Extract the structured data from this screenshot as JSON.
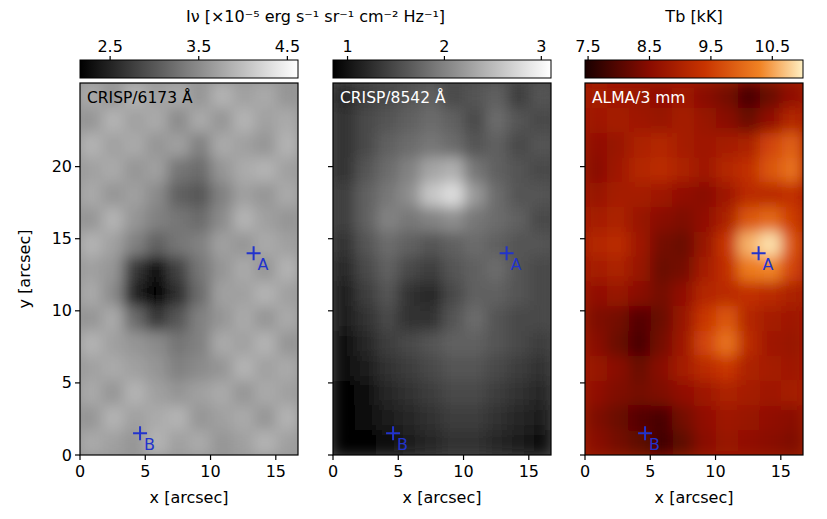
{
  "chart_data": [
    {
      "type": "heatmap",
      "title": "CRISP/6173 Å",
      "xlabel": "x [arcsec]",
      "ylabel": "y [arcsec]",
      "xlim": [
        0,
        16.7
      ],
      "ylim": [
        0,
        25.8
      ],
      "xticks": [
        0,
        5,
        10,
        15
      ],
      "yticks": [
        0,
        5,
        10,
        15,
        20
      ],
      "color": "gray",
      "colorbar": {
        "label": "Iν [×10⁻⁵ erg s⁻¹ sr⁻¹ cm⁻² Hz⁻¹]",
        "range": [
          2.16,
          4.62
        ],
        "ticks": [
          2.5,
          3.5,
          4.5
        ]
      },
      "cells": [
        [
          3.8,
          3.6,
          3.9,
          3.7,
          3.8,
          3.6,
          3.9,
          3.7,
          3.8,
          3.6
        ],
        [
          3.6,
          3.9,
          3.7,
          3.8,
          3.5,
          3.8,
          3.6,
          3.9,
          3.7,
          3.8
        ],
        [
          3.9,
          3.7,
          3.8,
          3.6,
          3.7,
          3.4,
          3.8,
          3.7,
          3.6,
          3.9
        ],
        [
          3.7,
          3.8,
          3.6,
          3.7,
          3.3,
          3.2,
          3.6,
          3.8,
          3.9,
          3.7
        ],
        [
          3.8,
          3.6,
          3.7,
          3.5,
          3.1,
          3.0,
          3.4,
          3.7,
          3.6,
          3.8
        ],
        [
          3.6,
          3.9,
          3.6,
          3.4,
          3.3,
          3.2,
          3.5,
          3.9,
          3.7,
          3.6
        ],
        [
          3.9,
          3.7,
          3.4,
          3.1,
          3.3,
          3.4,
          3.7,
          3.6,
          3.8,
          3.7
        ],
        [
          3.7,
          3.6,
          2.7,
          2.3,
          2.8,
          3.3,
          3.6,
          3.8,
          3.6,
          3.9
        ],
        [
          3.8,
          3.5,
          2.5,
          2.2,
          2.6,
          3.2,
          3.7,
          3.7,
          3.9,
          3.7
        ],
        [
          3.6,
          3.8,
          3.2,
          2.7,
          3.0,
          3.4,
          3.6,
          3.8,
          3.6,
          3.8
        ],
        [
          3.9,
          3.7,
          3.6,
          3.5,
          3.3,
          3.4,
          3.8,
          3.7,
          3.9,
          3.6
        ],
        [
          3.7,
          3.8,
          3.7,
          3.6,
          3.4,
          3.5,
          3.6,
          3.9,
          3.7,
          3.8
        ],
        [
          3.8,
          3.6,
          3.9,
          3.7,
          3.6,
          3.7,
          3.8,
          3.6,
          3.8,
          3.7
        ],
        [
          3.6,
          3.9,
          3.7,
          3.8,
          3.9,
          3.6,
          3.7,
          3.8,
          3.6,
          3.9
        ],
        [
          3.8,
          3.7,
          3.6,
          3.9,
          3.7,
          3.8,
          3.6,
          3.7,
          3.9,
          3.7
        ]
      ],
      "points": [
        {
          "label": "A",
          "x": 13.3,
          "y": 14.0
        },
        {
          "label": "B",
          "x": 4.6,
          "y": 1.5
        }
      ]
    },
    {
      "type": "heatmap",
      "title": "CRISP/8542 Å",
      "xlabel": "x [arcsec]",
      "xlim": [
        0,
        16.7
      ],
      "ylim": [
        0,
        25.8
      ],
      "xticks": [
        0,
        5,
        10,
        15
      ],
      "yticks": [
        0,
        5,
        10,
        15,
        20
      ],
      "tick_labels": "x",
      "color": "gray",
      "colorbar": {
        "range": [
          0.85,
          3.1
        ],
        "ticks": [
          1,
          2,
          3
        ]
      },
      "cells": [
        [
          1.2,
          1.4,
          1.5,
          1.6,
          1.7,
          1.5,
          1.6,
          1.7,
          1.4,
          1.6
        ],
        [
          1.3,
          1.5,
          1.6,
          1.7,
          1.8,
          1.7,
          1.5,
          1.8,
          1.6,
          1.5
        ],
        [
          1.3,
          1.5,
          1.7,
          1.8,
          1.9,
          1.8,
          1.6,
          1.7,
          1.5,
          1.6
        ],
        [
          1.3,
          1.6,
          1.8,
          2.0,
          2.3,
          2.4,
          1.9,
          1.7,
          1.6,
          1.5
        ],
        [
          1.4,
          1.7,
          1.9,
          2.1,
          2.6,
          2.8,
          2.2,
          1.8,
          1.6,
          1.6
        ],
        [
          1.4,
          1.7,
          2.0,
          1.9,
          2.0,
          2.1,
          1.9,
          1.8,
          1.7,
          1.5
        ],
        [
          1.3,
          1.6,
          1.8,
          1.7,
          1.6,
          1.7,
          1.8,
          1.7,
          1.6,
          1.6
        ],
        [
          1.2,
          1.5,
          1.7,
          1.5,
          1.4,
          1.6,
          1.7,
          1.8,
          1.6,
          1.5
        ],
        [
          1.1,
          1.4,
          1.6,
          1.3,
          1.2,
          1.5,
          1.7,
          1.7,
          1.6,
          1.5
        ],
        [
          1.1,
          1.3,
          1.5,
          1.3,
          1.3,
          1.6,
          1.8,
          1.6,
          1.5,
          1.5
        ],
        [
          1.0,
          1.2,
          1.4,
          1.5,
          1.6,
          1.7,
          1.7,
          1.6,
          1.5,
          1.4
        ],
        [
          0.95,
          1.1,
          1.3,
          1.4,
          1.5,
          1.6,
          1.6,
          1.5,
          1.4,
          1.3
        ],
        [
          0.9,
          1.0,
          1.2,
          1.3,
          1.4,
          1.5,
          1.5,
          1.4,
          1.3,
          1.2
        ],
        [
          0.9,
          0.95,
          1.1,
          1.2,
          1.3,
          1.4,
          1.4,
          1.3,
          1.2,
          1.1
        ],
        [
          0.9,
          0.9,
          1.0,
          1.1,
          1.2,
          1.3,
          1.3,
          1.2,
          1.1,
          1.0
        ]
      ],
      "points": [
        {
          "label": "A",
          "x": 13.3,
          "y": 14.0
        },
        {
          "label": "B",
          "x": 4.6,
          "y": 1.5
        }
      ]
    },
    {
      "type": "heatmap",
      "title": "ALMA/3 mm",
      "xlabel": "x [arcsec]",
      "xlim": [
        0,
        16.7
      ],
      "ylim": [
        0,
        25.8
      ],
      "xticks": [
        0,
        5,
        10,
        15
      ],
      "yticks": [
        0,
        5,
        10,
        15,
        20
      ],
      "tick_labels": "x",
      "color": "hot",
      "colorbar": {
        "label": "Tb [kK]",
        "range": [
          7.45,
          11.0
        ],
        "ticks": [
          7.5,
          8.5,
          9.5,
          10.5
        ]
      },
      "cells": [
        [
          8.9,
          8.8,
          8.7,
          8.6,
          8.8,
          8.5,
          8.3,
          7.9,
          8.2,
          8.6
        ],
        [
          8.8,
          8.9,
          8.8,
          8.7,
          8.9,
          8.7,
          8.5,
          8.2,
          8.6,
          9.1
        ],
        [
          8.6,
          8.7,
          9.0,
          9.1,
          8.9,
          8.8,
          8.9,
          9.0,
          9.6,
          9.9
        ],
        [
          8.5,
          8.8,
          9.1,
          9.2,
          9.0,
          8.8,
          9.1,
          9.3,
          9.8,
          10.1
        ],
        [
          8.7,
          8.9,
          8.9,
          8.8,
          8.6,
          8.5,
          8.8,
          9.2,
          9.2,
          9.3
        ],
        [
          8.9,
          9.0,
          8.7,
          8.5,
          8.4,
          8.6,
          9.0,
          9.8,
          10.0,
          9.5
        ],
        [
          9.1,
          9.2,
          8.8,
          8.3,
          8.2,
          8.7,
          9.4,
          10.6,
          10.9,
          9.8
        ],
        [
          8.9,
          9.0,
          8.7,
          8.2,
          8.3,
          8.9,
          9.3,
          10.2,
          10.3,
          9.6
        ],
        [
          8.6,
          8.7,
          8.5,
          8.3,
          8.6,
          9.1,
          9.2,
          9.3,
          9.2,
          9.0
        ],
        [
          8.4,
          8.3,
          8.0,
          8.2,
          8.7,
          9.4,
          9.8,
          9.1,
          8.9,
          8.8
        ],
        [
          8.5,
          8.2,
          7.9,
          8.3,
          8.8,
          9.6,
          10.1,
          9.2,
          8.8,
          8.7
        ],
        [
          8.7,
          8.5,
          8.2,
          8.5,
          8.9,
          9.2,
          9.4,
          9.0,
          8.9,
          8.8
        ],
        [
          8.6,
          8.4,
          8.3,
          8.4,
          8.6,
          8.8,
          9.0,
          8.9,
          8.8,
          8.9
        ],
        [
          8.4,
          8.2,
          8.0,
          7.9,
          8.3,
          8.6,
          8.8,
          8.7,
          8.6,
          8.5
        ],
        [
          8.5,
          8.3,
          8.1,
          7.8,
          8.1,
          8.5,
          8.7,
          8.6,
          8.5,
          8.4
        ]
      ],
      "points": [
        {
          "label": "A",
          "x": 13.3,
          "y": 14.0
        },
        {
          "label": "B",
          "x": 4.6,
          "y": 1.5
        }
      ]
    }
  ]
}
